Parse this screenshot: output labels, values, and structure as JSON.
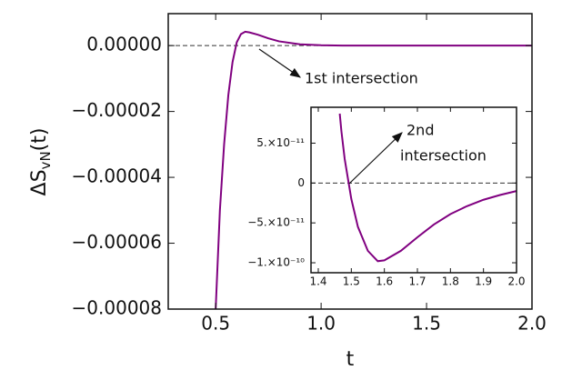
{
  "chart_data": [
    {
      "type": "line",
      "xlabel": "t",
      "ylabel": {
        "text": "ΔS",
        "subscript": "vN",
        "suffix": "(t)"
      },
      "x": [
        0.5,
        0.52,
        0.54,
        0.56,
        0.58,
        0.6,
        0.62,
        0.64,
        0.66,
        0.7,
        0.75,
        0.8,
        0.9,
        1.0,
        1.1,
        1.5,
        2.0
      ],
      "values": [
        -8e-05,
        -5e-05,
        -3e-05,
        -1.5e-05,
        -5e-06,
        1e-06,
        3.5e-06,
        4.2e-06,
        4e-06,
        3.3e-06,
        2.2e-06,
        1.3e-06,
        4e-07,
        1e-07,
        0,
        0,
        0
      ],
      "color": "#800080",
      "reference_line": 0,
      "xlim": [
        0.275,
        2.0
      ],
      "ylim": [
        -8e-05,
        9.7e-06
      ],
      "xticks": [
        0.5,
        {
          "value": 1,
          "label": "1.0"
        },
        1.5,
        {
          "value": 2,
          "label": "2.0"
        }
      ],
      "yticks": [
        {
          "value": 0,
          "label": "0.00000"
        },
        {
          "value": -2e-05,
          "label": "−0.00002"
        },
        {
          "value": -4e-05,
          "label": "−0.00004"
        },
        {
          "value": -6e-05,
          "label": "−0.00006"
        },
        {
          "value": -8e-05,
          "label": "−0.00008"
        }
      ],
      "annotations": [
        [
          "1st  intersection"
        ]
      ]
    },
    {
      "type": "line",
      "x": [
        1.465,
        1.47,
        1.48,
        1.49,
        1.5,
        1.52,
        1.55,
        1.58,
        1.6,
        1.65,
        1.7,
        1.75,
        1.8,
        1.85,
        1.9,
        1.95,
        2.0
      ],
      "values": [
        8.7e-11,
        6.5e-11,
        3e-11,
        5e-12,
        -2e-11,
        -5.5e-11,
        -8.5e-11,
        -9.8e-11,
        -9.7e-11,
        -8.5e-11,
        -6.8e-11,
        -5.2e-11,
        -3.9e-11,
        -2.9e-11,
        -2.1e-11,
        -1.5e-11,
        -1e-11
      ],
      "color": "#800080",
      "reference_line": 0,
      "xlim": [
        1.378,
        2.0
      ],
      "ylim": [
        -1.125e-10,
        9.5e-11
      ],
      "xticks": [
        1.4,
        1.5,
        1.6,
        1.7,
        1.8,
        1.9,
        {
          "value": 2,
          "label": "2.0"
        }
      ],
      "yticks": [
        {
          "value": 5e-11,
          "label": "5.×10⁻¹¹"
        },
        0,
        {
          "value": -5e-11,
          "label": "−5.×10⁻¹¹"
        },
        {
          "value": -1e-10,
          "label": "−1.×10⁻¹⁰"
        }
      ],
      "annotations": [
        [
          "2nd",
          "intersection"
        ]
      ]
    }
  ]
}
